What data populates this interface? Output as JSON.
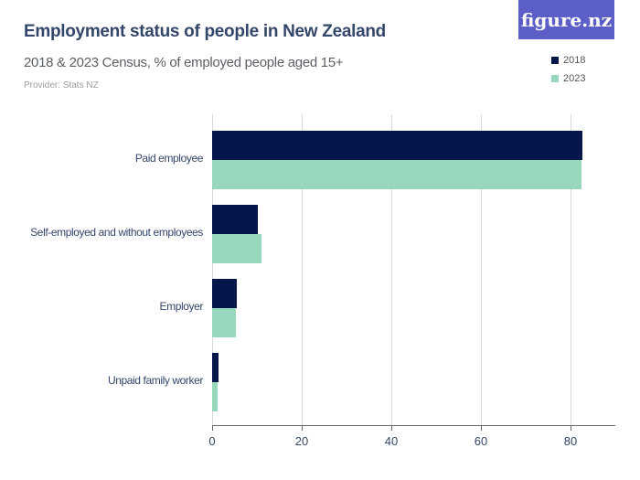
{
  "header": {
    "title": "Employment status of people in New Zealand",
    "subtitle": "2018 & 2023 Census, % of employed people aged 15+",
    "provider": "Provider: Stats NZ",
    "logo": "figure.nz"
  },
  "legend": [
    {
      "label": "2018",
      "color": "#06164a"
    },
    {
      "label": "2023",
      "color": "#97d7bb"
    }
  ],
  "axis": {
    "ticks": [
      "0",
      "20",
      "40",
      "60",
      "80"
    ]
  },
  "categories": [
    "Paid employee",
    "Self-employed and without employees",
    "Employer",
    "Unpaid family worker"
  ],
  "chart_data": {
    "type": "bar",
    "orientation": "horizontal",
    "title": "Employment status of people in New Zealand",
    "subtitle": "2018 & 2023 Census, % of employed people aged 15+",
    "categories": [
      "Paid employee",
      "Self-employed and without employees",
      "Employer",
      "Unpaid family worker"
    ],
    "series": [
      {
        "name": "2018",
        "color": "#06164a",
        "values": [
          82.6,
          10.3,
          5.6,
          1.5
        ]
      },
      {
        "name": "2023",
        "color": "#97d7bb",
        "values": [
          82.4,
          11.0,
          5.3,
          1.2
        ]
      }
    ],
    "xlabel": "",
    "ylabel": "",
    "xlim": [
      0,
      90
    ],
    "xticks": [
      0,
      20,
      40,
      60,
      80
    ],
    "grid": true,
    "legend_position": "top-right"
  }
}
